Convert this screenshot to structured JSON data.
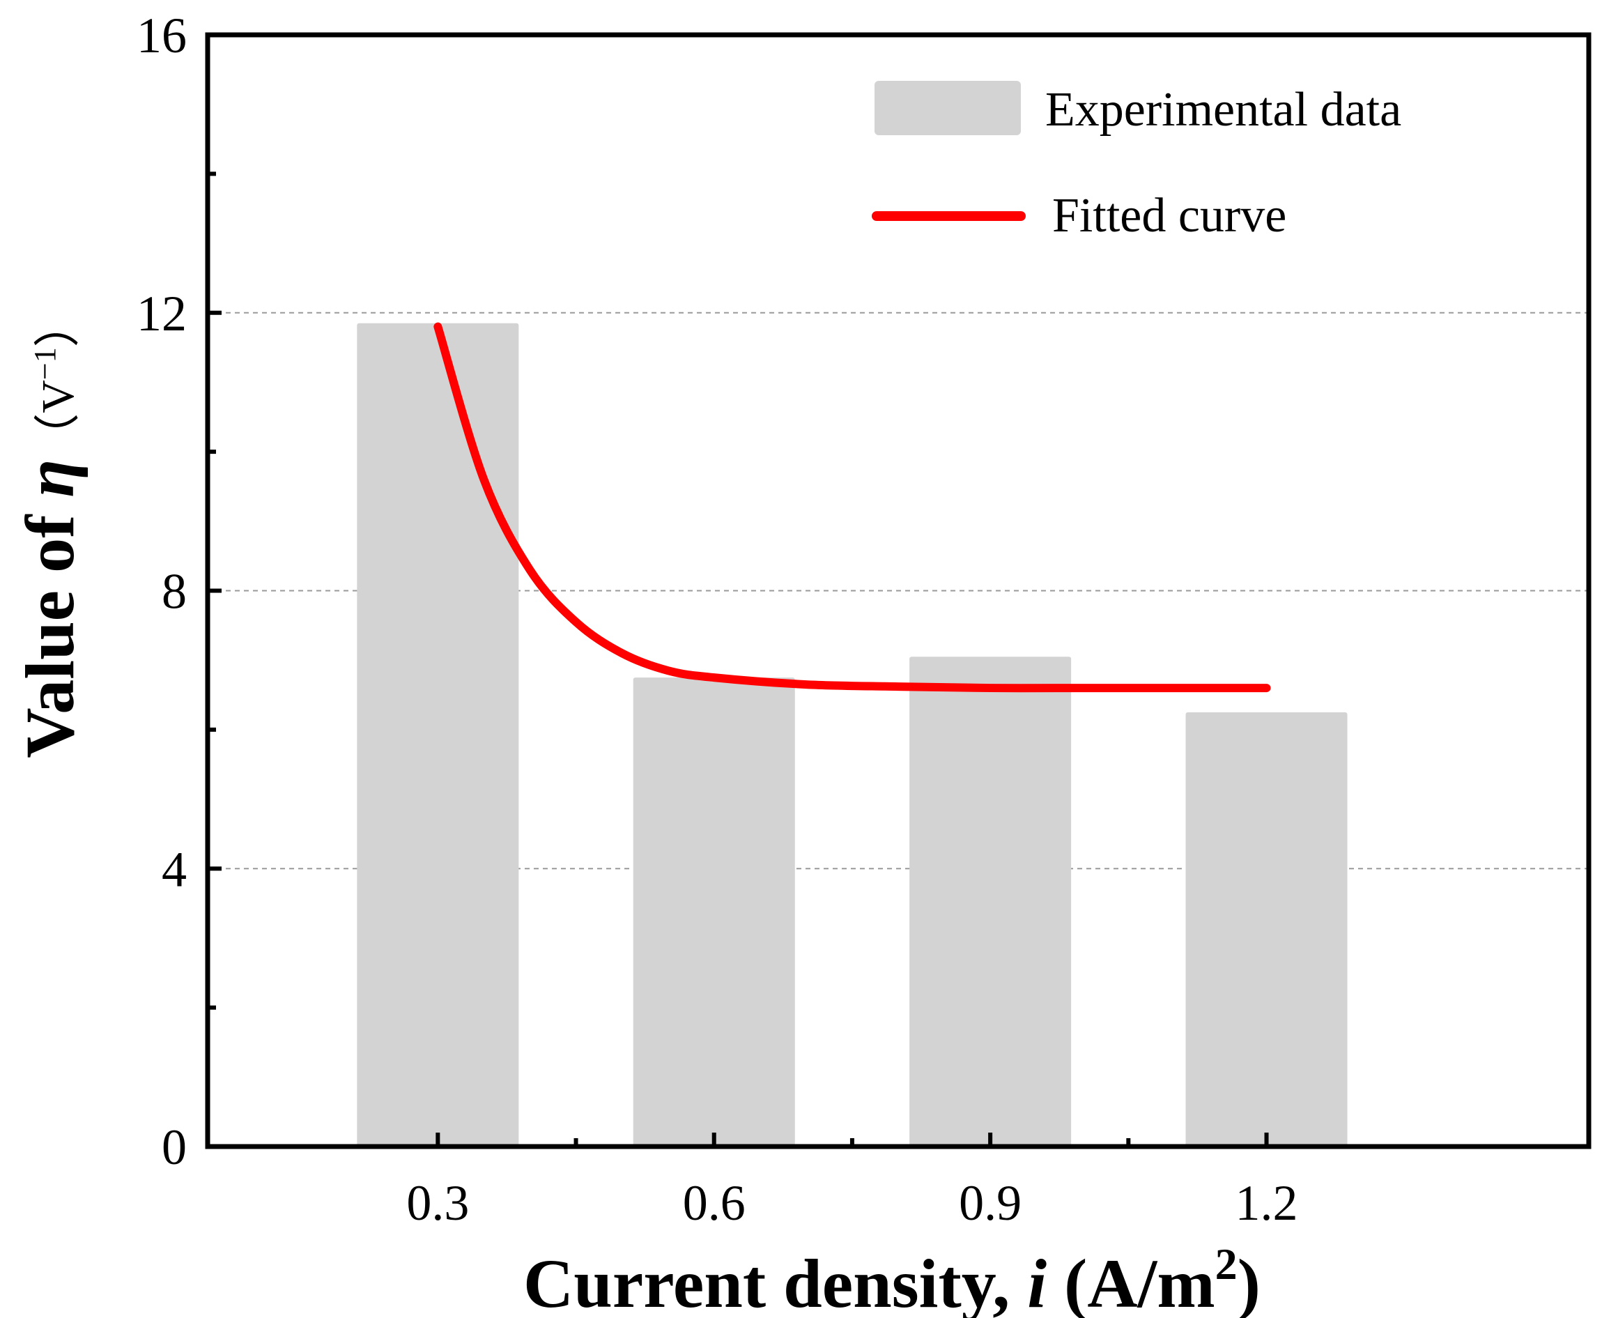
{
  "chart_data": {
    "type": "bar",
    "title": "",
    "categories": [
      "0.3",
      "0.6",
      "0.9",
      "1.2"
    ],
    "x": [
      0.3,
      0.6,
      0.9,
      1.2
    ],
    "series": [
      {
        "name": "Experimental data",
        "kind": "bar",
        "values": [
          11.85,
          6.75,
          7.05,
          6.25
        ],
        "color": "#d3d3d3"
      },
      {
        "name": "Fitted curve",
        "kind": "line",
        "color": "#ff0000",
        "points": [
          [
            0.3,
            11.8
          ],
          [
            0.35,
            9.6
          ],
          [
            0.4,
            8.3
          ],
          [
            0.45,
            7.55
          ],
          [
            0.5,
            7.1
          ],
          [
            0.55,
            6.85
          ],
          [
            0.6,
            6.75
          ],
          [
            0.7,
            6.65
          ],
          [
            0.8,
            6.62
          ],
          [
            0.9,
            6.6
          ],
          [
            1.0,
            6.6
          ],
          [
            1.1,
            6.6
          ],
          [
            1.2,
            6.6
          ]
        ]
      }
    ],
    "xlabel": {
      "prefix": "Current density, ",
      "symbol": "i",
      "unit_open": " (A/m",
      "unit_power": "2",
      "unit_close": ")"
    },
    "ylabel": {
      "prefix": "Value of ",
      "symbol": "η",
      "unit": "（V",
      "unit_power": "−1",
      "unit_close": "）"
    },
    "ylim": [
      0,
      16
    ],
    "xlim": [
      0.05,
      1.55
    ],
    "yticks": [
      "0",
      "4",
      "8",
      "12",
      "16"
    ],
    "ytick_values": [
      0,
      4,
      8,
      12,
      16
    ],
    "y_minor_ticks": [
      2,
      6,
      10,
      14
    ],
    "x_minor_ticks": [
      0.45,
      0.75,
      1.05
    ],
    "gridlines_y": [
      4,
      8,
      12
    ],
    "grid": "dashed horizontal",
    "legend": {
      "position": "top-right",
      "entries": [
        "Experimental data",
        "Fitted curve"
      ]
    }
  }
}
